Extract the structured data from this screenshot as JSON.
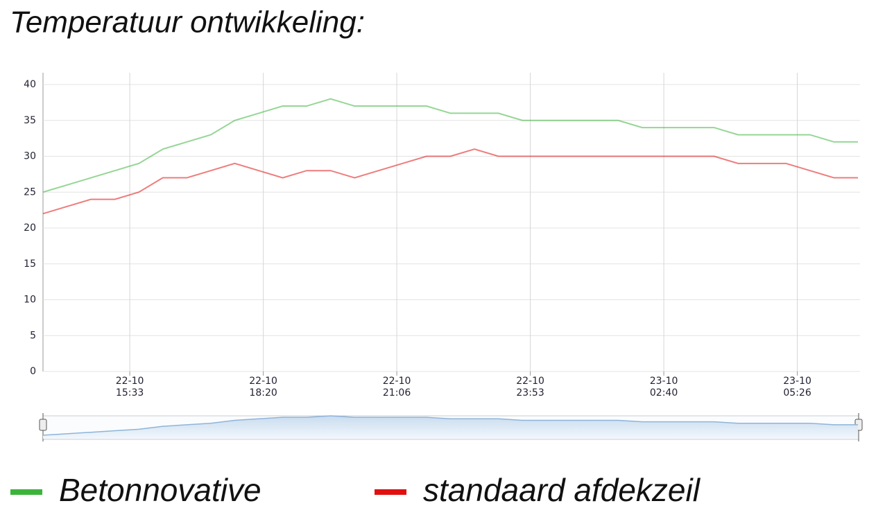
{
  "chart_data": {
    "type": "line",
    "title": "Temperatuur ontwikkeling:",
    "x": [
      0,
      1,
      2,
      3,
      4,
      5,
      6,
      7,
      8,
      9,
      10,
      11,
      12,
      13,
      14,
      15,
      16,
      17,
      18,
      19,
      20,
      21,
      22,
      23,
      24,
      25,
      26,
      27,
      28,
      29,
      30,
      31,
      32,
      33,
      34
    ],
    "xlim": [
      0,
      34
    ],
    "xticks": [
      {
        "value": 3.62,
        "label": "22-10\n15:33"
      },
      {
        "value": 9.19,
        "label": "22-10\n18:20"
      },
      {
        "value": 14.76,
        "label": "22-10\n21:06"
      },
      {
        "value": 20.33,
        "label": "22-10\n23:53"
      },
      {
        "value": 25.9,
        "label": "23-10\n02:40"
      },
      {
        "value": 31.47,
        "label": "23-10\n05:26"
      }
    ],
    "ylim": [
      0,
      40
    ],
    "yticks": [
      0,
      5,
      10,
      15,
      20,
      25,
      30,
      35,
      40
    ],
    "grid": true,
    "series": [
      {
        "name": "Betonnovative",
        "color": "#3cb43c",
        "values": [
          25,
          26,
          27,
          28,
          29,
          31,
          32,
          33,
          35,
          36,
          37,
          37,
          38,
          37,
          37,
          37,
          37,
          36,
          36,
          36,
          35,
          35,
          35,
          35,
          35,
          34,
          34,
          34,
          34,
          33,
          33,
          33,
          33,
          32,
          32
        ]
      },
      {
        "name": "standaard afdekzeil",
        "color": "#e01010",
        "values": [
          22,
          23,
          24,
          24,
          25,
          27,
          27,
          28,
          29,
          28,
          27,
          28,
          28,
          27,
          28,
          29,
          30,
          30,
          31,
          30,
          30,
          30,
          30,
          30,
          30,
          30,
          30,
          30,
          30,
          29,
          29,
          29,
          28,
          27,
          27
        ]
      }
    ]
  }
}
